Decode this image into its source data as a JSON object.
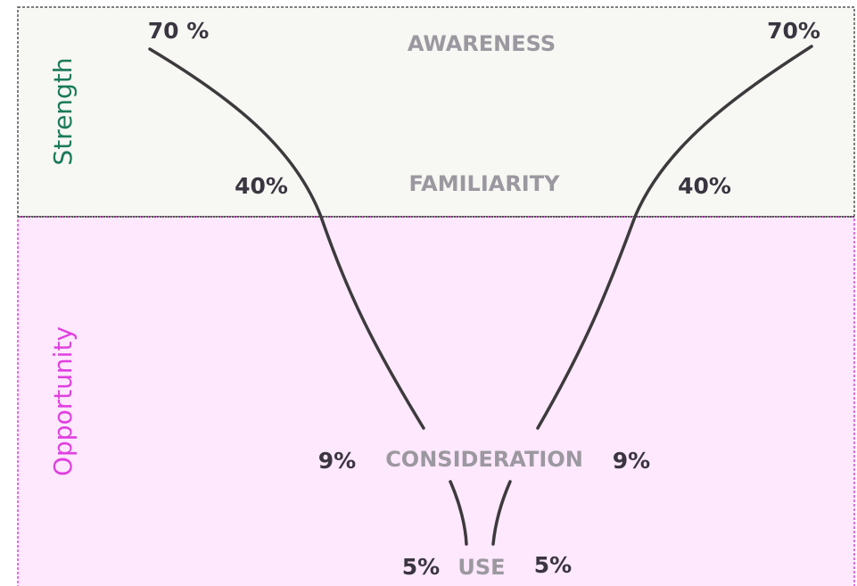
{
  "side_labels": {
    "top": "Strength",
    "bottom": "Opportunity"
  },
  "stages": [
    {
      "name": "AWARENESS",
      "left": "70 %",
      "right": "70%"
    },
    {
      "name": "FAMILIARITY",
      "left": "40%",
      "right": "40%"
    },
    {
      "name": "CONSIDERATION",
      "left": "9%",
      "right": "9%"
    },
    {
      "name": "USE",
      "left": "5%",
      "right": "5%"
    }
  ]
}
